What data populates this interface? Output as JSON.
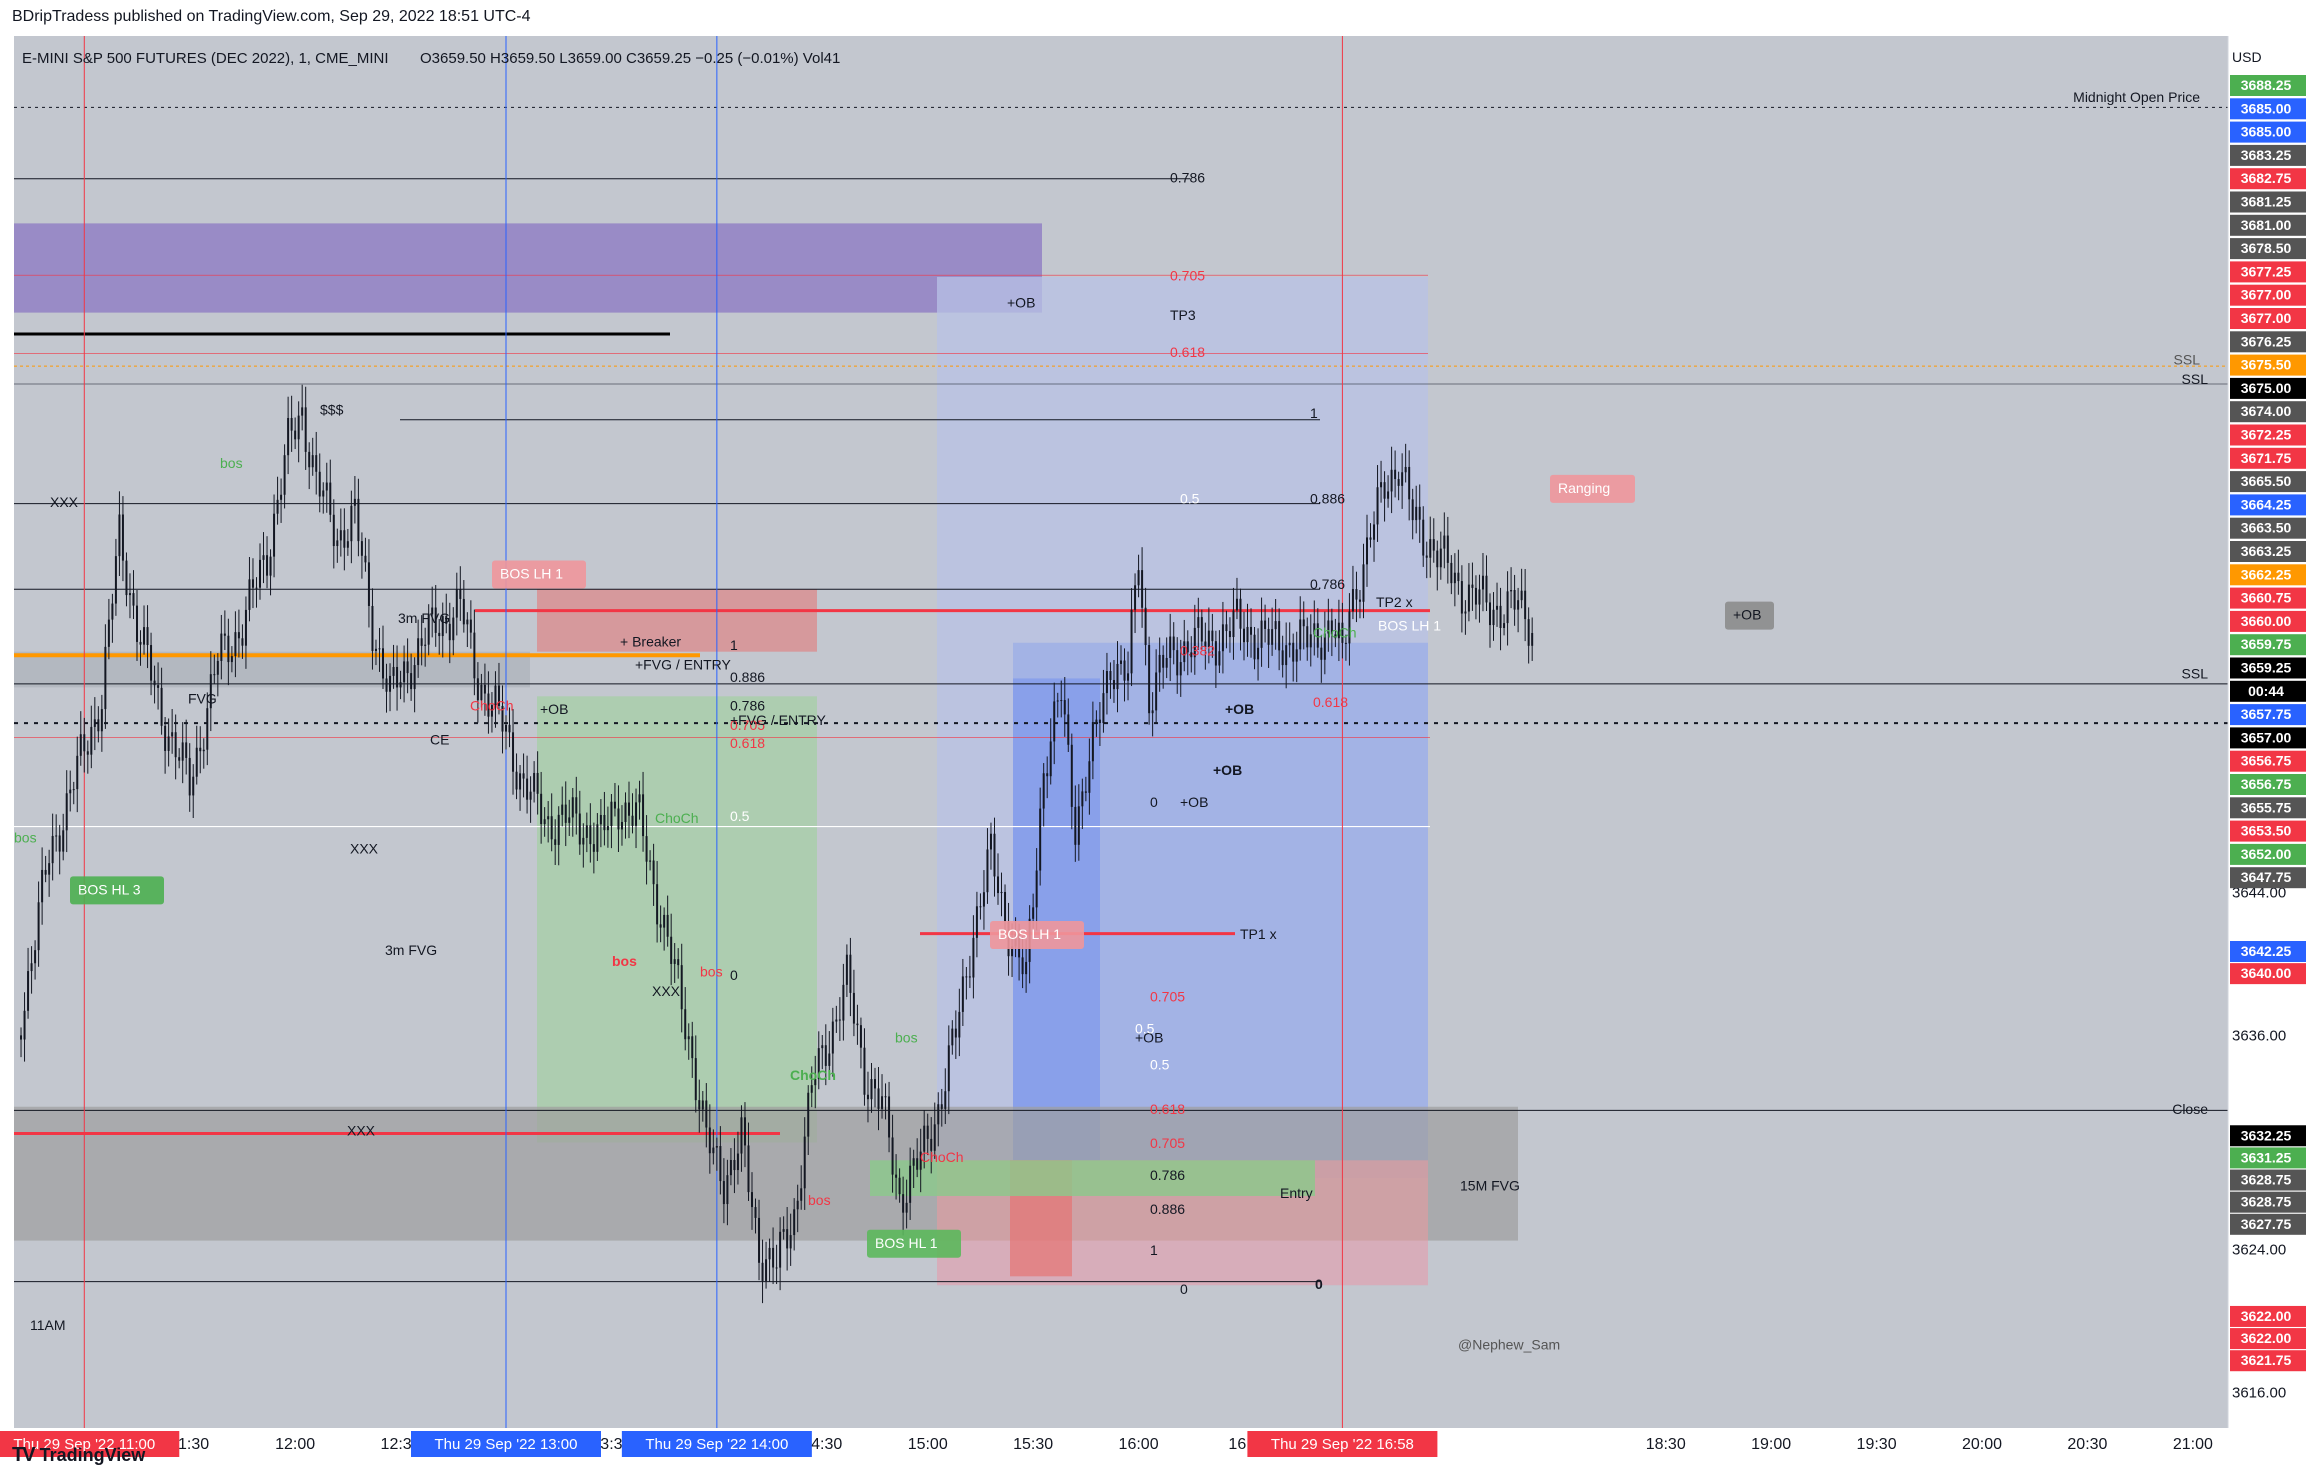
{
  "header": {
    "publisher": "BDripTradess published on TradingView.com, Sep 29, 2022 18:51 UTC-4"
  },
  "legend": {
    "symbol": "E-MINI S&P 500 FUTURES (DEC 2022), 1, CME_MINI",
    "ohlc": "O3659.50  H3659.50  L3659.00  C3659.25  −0.25 (−0.01%)  Vol41"
  },
  "axis": {
    "currency": "USD",
    "price_ticks": [
      "3644.00",
      "3636.00",
      "3624.00",
      "3616.00"
    ],
    "time_ticks": [
      "11:30",
      "12:00",
      "12:30",
      "13:30",
      "14:30",
      "15:00",
      "15:30",
      "16:00",
      "16:3",
      "18:30",
      "19:00",
      "19:30",
      "20:00",
      "20:30",
      "21:00"
    ],
    "time_markers": [
      "Thu 29 Sep '22   11:00",
      "Thu 29 Sep '22   13:00",
      "Thu 29 Sep '22   14:00",
      "Thu 29 Sep '22   16:58"
    ]
  },
  "price_labels": [
    {
      "text": "3688.25",
      "color": "#4caf50"
    },
    {
      "text": "3685.00",
      "color": "#2962ff"
    },
    {
      "text": "3685.00",
      "color": "#2962ff"
    },
    {
      "text": "3683.25",
      "color": "#555555"
    },
    {
      "text": "3682.75",
      "color": "#f23645"
    },
    {
      "text": "3681.25",
      "color": "#555555"
    },
    {
      "text": "3681.00",
      "color": "#555555"
    },
    {
      "text": "3678.50",
      "color": "#555555"
    },
    {
      "text": "3677.25",
      "color": "#f23645"
    },
    {
      "text": "3677.00",
      "color": "#f23645"
    },
    {
      "text": "3677.00",
      "color": "#f23645"
    },
    {
      "text": "3676.25",
      "color": "#555555"
    },
    {
      "text": "3675.50",
      "color": "#ff9800"
    },
    {
      "text": "3675.00",
      "color": "#000000"
    },
    {
      "text": "3674.00",
      "color": "#555555"
    },
    {
      "text": "3672.25",
      "color": "#f23645"
    },
    {
      "text": "3671.75",
      "color": "#f23645"
    },
    {
      "text": "3665.50",
      "color": "#555555"
    },
    {
      "text": "3664.25",
      "color": "#2962ff"
    },
    {
      "text": "3663.50",
      "color": "#555555"
    },
    {
      "text": "3663.25",
      "color": "#555555"
    },
    {
      "text": "3662.25",
      "color": "#ff9800"
    },
    {
      "text": "3660.75",
      "color": "#f23645"
    },
    {
      "text": "3660.00",
      "color": "#f23645"
    },
    {
      "text": "3659.75",
      "color": "#4caf50"
    },
    {
      "text": "3659.25",
      "color": "#000000"
    },
    {
      "text": "00:44",
      "color": "#000000"
    },
    {
      "text": "3657.75",
      "color": "#2962ff"
    },
    {
      "text": "3657.00",
      "color": "#000000"
    },
    {
      "text": "3656.75",
      "color": "#f23645"
    },
    {
      "text": "3656.75",
      "color": "#4caf50"
    },
    {
      "text": "3655.75",
      "color": "#555555"
    },
    {
      "text": "3653.50",
      "color": "#f23645"
    },
    {
      "text": "3652.00",
      "color": "#4caf50"
    },
    {
      "text": "3647.75",
      "color": "#555555"
    },
    {
      "text": "3642.25",
      "color": "#2962ff"
    },
    {
      "text": "3640.00",
      "color": "#f23645"
    },
    {
      "text": "3632.25",
      "color": "#000000"
    },
    {
      "text": "3631.25",
      "color": "#4caf50"
    },
    {
      "text": "3628.75",
      "color": "#555555"
    },
    {
      "text": "3628.75",
      "color": "#555555"
    },
    {
      "text": "3627.75",
      "color": "#555555"
    },
    {
      "text": "3622.00",
      "color": "#f23645"
    },
    {
      "text": "3622.00",
      "color": "#f23645"
    },
    {
      "text": "3621.75",
      "color": "#f23645"
    }
  ],
  "annotations": [
    {
      "text": "Midnight Open Price",
      "color": "#131722"
    },
    {
      "text": "0.786",
      "color": "#131722"
    },
    {
      "text": "0.705",
      "color": "#f23645"
    },
    {
      "text": "+OB",
      "color": "#131722"
    },
    {
      "text": "TP3",
      "color": "#131722"
    },
    {
      "text": "0.618",
      "color": "#f23645"
    },
    {
      "text": "$$$",
      "color": "#131722"
    },
    {
      "text": "1",
      "color": "#131722"
    },
    {
      "text": "XXX",
      "color": "#131722"
    },
    {
      "text": "0.5",
      "color": "#ffffff"
    },
    {
      "text": "0.886",
      "color": "#131722"
    },
    {
      "text": "bos",
      "color": "#4caf50"
    },
    {
      "text": "BOS LH 1",
      "color": "#ffffff"
    },
    {
      "text": "0.786",
      "color": "#131722"
    },
    {
      "text": "TP2 x",
      "color": "#131722"
    },
    {
      "text": "3m FVG",
      "color": "#131722"
    },
    {
      "text": "+ Breaker",
      "color": "#131722"
    },
    {
      "text": "1",
      "color": "#131722"
    },
    {
      "text": "+FVG / ENTRY",
      "color": "#131722"
    },
    {
      "text": "0.886",
      "color": "#131722"
    },
    {
      "text": "0.786",
      "color": "#131722"
    },
    {
      "text": "+OB",
      "color": "#131722"
    },
    {
      "text": "0.705",
      "color": "#f23645"
    },
    {
      "text": "+FVG / ENTRY",
      "color": "#131722"
    },
    {
      "text": "0.618",
      "color": "#f23645"
    },
    {
      "text": "CE",
      "color": "#131722"
    },
    {
      "text": "ChoCh",
      "color": "#f23645"
    },
    {
      "text": "FVG",
      "color": "#131722"
    },
    {
      "text": "0.5",
      "color": "#ffffff"
    },
    {
      "text": "XXX",
      "color": "#131722"
    },
    {
      "text": "BOS HL 3",
      "color": "#ffffff"
    },
    {
      "text": "bos",
      "color": "#4caf50"
    },
    {
      "text": "3m FVG",
      "color": "#131722"
    },
    {
      "text": "bos",
      "color": "#f23645"
    },
    {
      "text": "0",
      "color": "#131722"
    },
    {
      "text": "XXX",
      "color": "#131722"
    },
    {
      "text": "bos",
      "color": "#f23645"
    },
    {
      "text": "ChoCh",
      "color": "#4caf50"
    },
    {
      "text": "XXX",
      "color": "#131722"
    },
    {
      "text": "ChoCh",
      "color": "#4caf50"
    },
    {
      "text": "ChoCh",
      "color": "#f23645"
    },
    {
      "text": "bos",
      "color": "#4caf50"
    },
    {
      "text": "bos",
      "color": "#f23645"
    },
    {
      "text": "BOS HL 1",
      "color": "#ffffff"
    },
    {
      "text": "BOS LH 1",
      "color": "#ffffff"
    },
    {
      "text": "TP1 x",
      "color": "#131722"
    },
    {
      "text": "+OB",
      "color": "#131722"
    },
    {
      "text": "0.5",
      "color": "#ffffff"
    },
    {
      "text": "0.618",
      "color": "#f23645"
    },
    {
      "text": "0.705",
      "color": "#f23645"
    },
    {
      "text": "0.786",
      "color": "#131722"
    },
    {
      "text": "0.886",
      "color": "#131722"
    },
    {
      "text": "1",
      "color": "#131722"
    },
    {
      "text": "0",
      "color": "#131722"
    },
    {
      "text": "0",
      "color": "#131722"
    },
    {
      "text": "Entry",
      "color": "#131722"
    },
    {
      "text": "15M FVG",
      "color": "#131722"
    },
    {
      "text": "0.382",
      "color": "#f23645"
    },
    {
      "text": "0.618",
      "color": "#f23645"
    },
    {
      "text": "+OB",
      "color": "#131722"
    },
    {
      "text": "+OB",
      "color": "#131722"
    },
    {
      "text": "0",
      "color": "#131722"
    },
    {
      "text": "+OB",
      "color": "#131722"
    },
    {
      "text": "0.5",
      "color": "#ffffff"
    },
    {
      "text": "0.705",
      "color": "#f23645"
    },
    {
      "text": "ChoCh",
      "color": "#4caf50"
    },
    {
      "text": "BOS LH 1",
      "color": "#ffffff"
    },
    {
      "text": "Ranging",
      "color": "#ffffff"
    },
    {
      "text": "+OB",
      "color": "#131722"
    },
    {
      "text": "SSL",
      "color": "#555555"
    },
    {
      "text": "SSL",
      "color": "#131722"
    },
    {
      "text": "SSL",
      "color": "#131722"
    },
    {
      "text": "Close",
      "color": "#131722"
    },
    {
      "text": "@Nephew_Sam",
      "color": "#555555"
    },
    {
      "text": "11AM",
      "color": "#131722"
    }
  ],
  "footer": {
    "brand": "TradingView",
    "logo": "TV"
  },
  "chart_data": {
    "type": "candlestick",
    "symbol": "E-MINI S&P 500 FUTURES (DEC 2022)",
    "interval": "1",
    "exchange": "CME_MINI",
    "last": {
      "open": 3659.5,
      "high": 3659.5,
      "low": 3659.0,
      "close": 3659.25,
      "change": -0.25,
      "change_pct": -0.01,
      "volume": 41
    },
    "ylim": [
      3614,
      3692
    ],
    "x_range": [
      "10:40",
      "21:10"
    ],
    "price_path": [
      [
        "10:41",
        3636
      ],
      [
        "10:50",
        3646
      ],
      [
        "11:00",
        3652
      ],
      [
        "11:05",
        3655
      ],
      [
        "11:10",
        3664
      ],
      [
        "11:15",
        3659
      ],
      [
        "11:22",
        3654
      ],
      [
        "11:30",
        3650
      ],
      [
        "11:38",
        3657
      ],
      [
        "11:45",
        3659
      ],
      [
        "11:52",
        3663
      ],
      [
        "11:58",
        3669
      ],
      [
        "12:02",
        3671
      ],
      [
        "12:06",
        3667
      ],
      [
        "12:12",
        3664
      ],
      [
        "12:17",
        3665
      ],
      [
        "12:22",
        3659
      ],
      [
        "12:27",
        3655
      ],
      [
        "12:33",
        3657
      ],
      [
        "12:40",
        3659
      ],
      [
        "12:47",
        3660
      ],
      [
        "12:52",
        3656
      ],
      [
        "13:00",
        3653
      ],
      [
        "13:05",
        3650
      ],
      [
        "13:12",
        3648
      ],
      [
        "13:20",
        3648
      ],
      [
        "13:27",
        3647
      ],
      [
        "13:32",
        3649
      ],
      [
        "13:38",
        3648
      ],
      [
        "13:45",
        3642
      ],
      [
        "13:52",
        3636
      ],
      [
        "13:57",
        3630
      ],
      [
        "14:02",
        3628
      ],
      [
        "14:07",
        3630
      ],
      [
        "14:12",
        3624
      ],
      [
        "14:17",
        3623
      ],
      [
        "14:22",
        3626
      ],
      [
        "14:27",
        3633
      ],
      [
        "14:32",
        3636
      ],
      [
        "14:37",
        3639
      ],
      [
        "14:42",
        3634
      ],
      [
        "14:47",
        3632
      ],
      [
        "14:52",
        3627
      ],
      [
        "14:58",
        3629
      ],
      [
        "15:03",
        3632
      ],
      [
        "15:08",
        3636
      ],
      [
        "15:13",
        3642
      ],
      [
        "15:18",
        3646
      ],
      [
        "15:23",
        3642
      ],
      [
        "15:28",
        3639
      ],
      [
        "15:33",
        3651
      ],
      [
        "15:38",
        3655
      ],
      [
        "15:42",
        3648
      ],
      [
        "15:47",
        3652
      ],
      [
        "15:52",
        3657
      ],
      [
        "15:57",
        3656
      ],
      [
        "16:00",
        3663
      ],
      [
        "16:03",
        3655
      ],
      [
        "16:08",
        3657
      ],
      [
        "16:14",
        3658
      ],
      [
        "16:20",
        3658
      ],
      [
        "16:28",
        3659
      ],
      [
        "16:38",
        3658
      ],
      [
        "16:48",
        3658
      ],
      [
        "16:55",
        3659
      ],
      [
        "16:58",
        3657
      ],
      [
        "17:00",
        3660
      ],
      [
        "17:05",
        3663
      ],
      [
        "17:10",
        3667
      ],
      [
        "17:14",
        3668
      ],
      [
        "17:18",
        3665
      ],
      [
        "17:25",
        3663
      ],
      [
        "17:32",
        3661
      ],
      [
        "17:40",
        3660
      ],
      [
        "17:48",
        3660
      ],
      [
        "17:52",
        3659
      ]
    ]
  }
}
